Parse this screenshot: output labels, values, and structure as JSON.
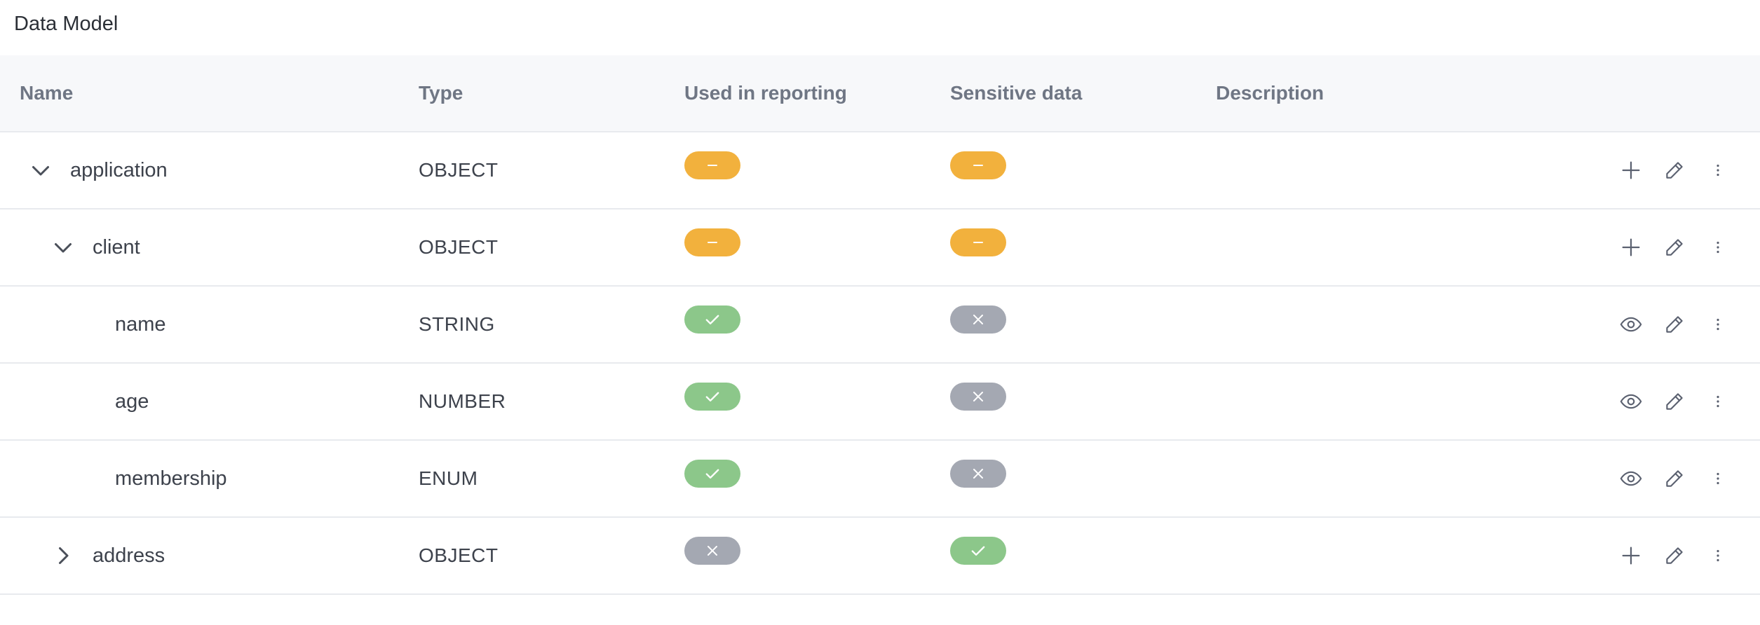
{
  "page": {
    "title": "Data Model"
  },
  "columns": {
    "name": "Name",
    "type": "Type",
    "reporting": "Used in reporting",
    "sensitive": "Sensitive data",
    "description": "Description"
  },
  "colors": {
    "partial": "#f2b13d",
    "yes": "#8cc78a",
    "no": "#a4a8b2"
  },
  "rows": [
    {
      "name": "application",
      "type": "OBJECT",
      "depth": 0,
      "expander": "expanded",
      "reporting": "partial",
      "sensitive": "partial",
      "view_action": "add-icon"
    },
    {
      "name": "client",
      "type": "OBJECT",
      "depth": 1,
      "expander": "expanded",
      "reporting": "partial",
      "sensitive": "partial",
      "view_action": "add-icon"
    },
    {
      "name": "name",
      "type": "STRING",
      "depth": 2,
      "expander": "none",
      "reporting": "yes",
      "sensitive": "no",
      "view_action": "eye-icon"
    },
    {
      "name": "age",
      "type": "NUMBER",
      "depth": 2,
      "expander": "none",
      "reporting": "yes",
      "sensitive": "no",
      "view_action": "eye-icon"
    },
    {
      "name": "membership",
      "type": "ENUM",
      "depth": 2,
      "expander": "none",
      "reporting": "yes",
      "sensitive": "no",
      "view_action": "eye-icon"
    },
    {
      "name": "address",
      "type": "OBJECT",
      "depth": 1,
      "expander": "collapsed",
      "reporting": "no",
      "sensitive": "yes",
      "view_action": "add-icon"
    }
  ]
}
